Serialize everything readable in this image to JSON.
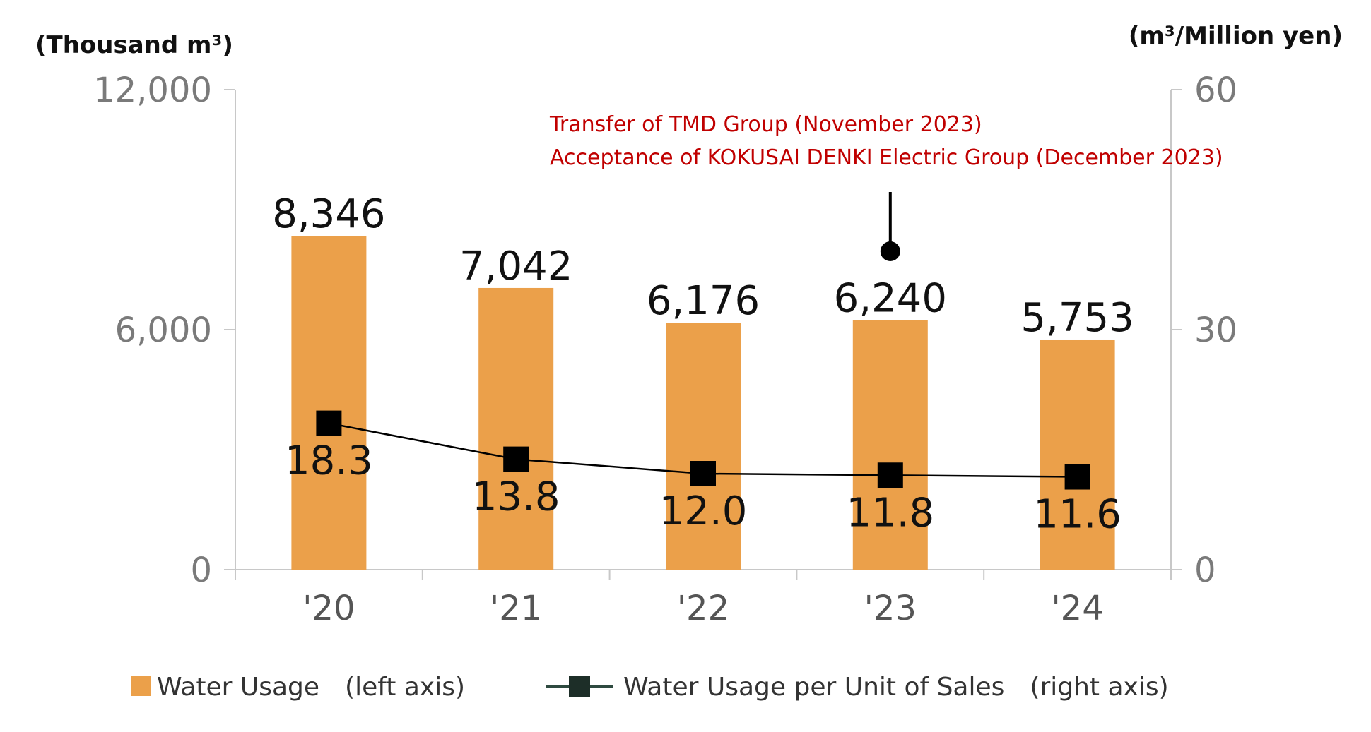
{
  "chart_data": {
    "type": "bar+line",
    "categories": [
      "'20",
      "'21",
      "'22",
      "'23",
      "'24"
    ],
    "series": [
      {
        "name": "Water Usage　(left axis)",
        "type": "bar",
        "axis": "left",
        "values": [
          8346,
          7042,
          6176,
          6240,
          5753
        ],
        "labels": [
          "8,346",
          "7,042",
          "6,176",
          "6,240",
          "5,753"
        ],
        "color": "#EBA04A"
      },
      {
        "name": "Water Usage per Unit of Sales　(right axis)",
        "type": "line",
        "axis": "right",
        "values": [
          18.3,
          13.8,
          12.0,
          11.8,
          11.6
        ],
        "labels": [
          "18.3",
          "13.8",
          "12.0",
          "11.8",
          "11.6"
        ],
        "color": "#000000"
      }
    ],
    "left_axis": {
      "unit": "(Thousand m³)",
      "min": 0,
      "max": 12000,
      "ticks": [
        0,
        6000,
        12000
      ],
      "tick_labels": [
        "0",
        "6,000",
        "12,000"
      ]
    },
    "right_axis": {
      "unit": "(m³/Million yen)",
      "min": 0,
      "max": 60,
      "ticks": [
        0,
        30,
        60
      ],
      "tick_labels": [
        "0",
        "30",
        "60"
      ]
    },
    "annotation": {
      "category": "'23",
      "lines": [
        "Transfer of TMD Group (November 2023)",
        "Acceptance of KOKUSAI DENKI Electric Group (December 2023)"
      ],
      "color": "#C00000"
    },
    "legend": {
      "position": "bottom"
    },
    "grid": false
  }
}
